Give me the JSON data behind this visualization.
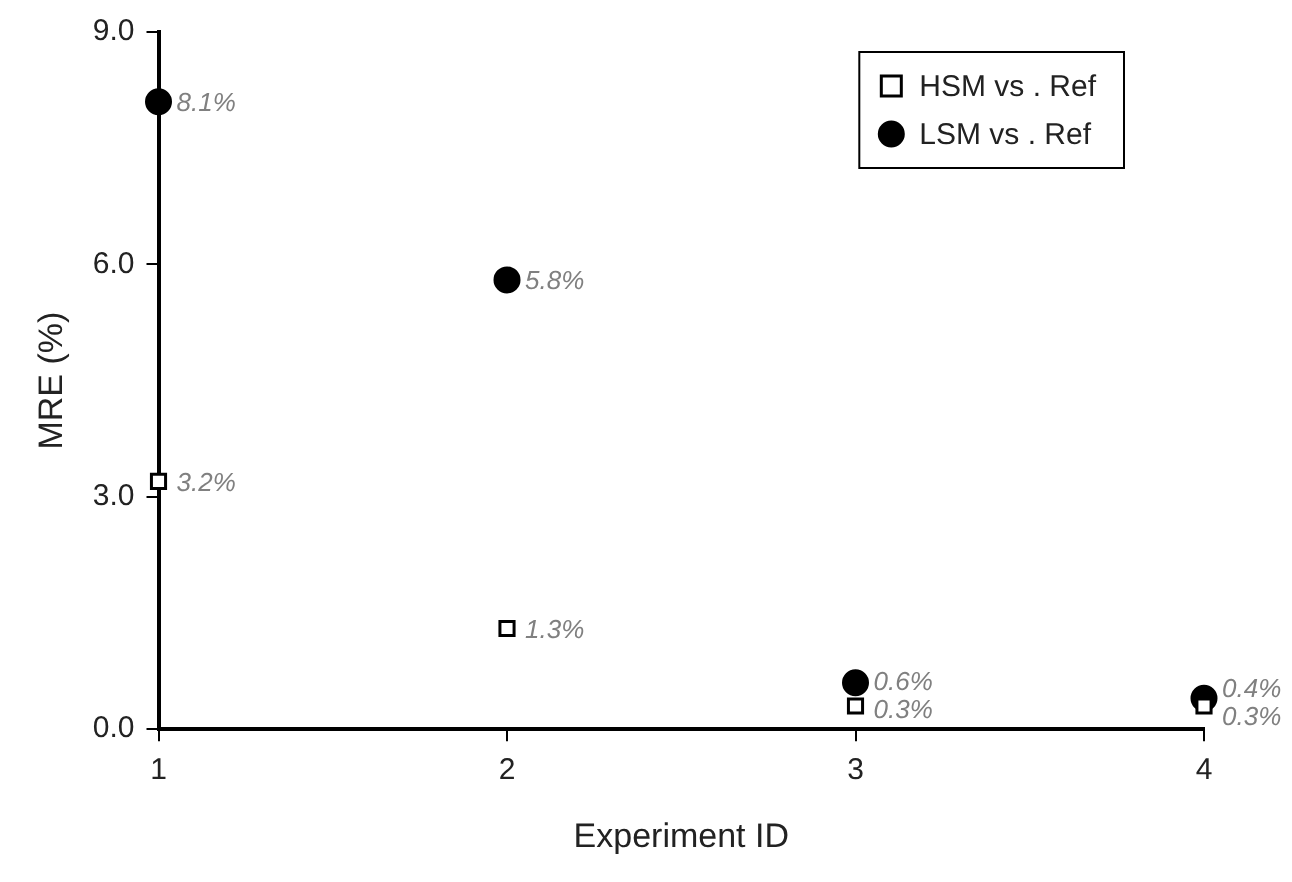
{
  "chart_data": {
    "type": "scatter",
    "xlabel": "Experiment ID",
    "ylabel": "MRE (%)",
    "x": [
      1,
      2,
      3,
      4
    ],
    "xlim": [
      1,
      4
    ],
    "xticks": [
      1,
      2,
      3,
      4
    ],
    "ylim": [
      0,
      9
    ],
    "yticks": [
      {
        "value": 0,
        "label": "0.0"
      },
      {
        "value": 3,
        "label": "3.0"
      },
      {
        "value": 6,
        "label": "6.0"
      },
      {
        "value": 9,
        "label": "9.0"
      }
    ],
    "grid": false,
    "legend": "top right",
    "series": [
      {
        "name": "HSM vs . Ref",
        "color": "#000000",
        "marker": "square",
        "values": [
          3.2,
          1.3,
          0.3,
          0.3
        ],
        "value_labels": [
          "3.2%",
          "1.3%",
          "0.3%",
          "0.3%"
        ]
      },
      {
        "name": "LSM vs . Ref",
        "color": "#000000",
        "marker": "circle",
        "values": [
          8.1,
          5.8,
          0.6,
          0.4
        ],
        "value_labels": [
          "8.1%",
          "5.8%",
          "0.6%",
          "0.4%"
        ]
      }
    ]
  }
}
